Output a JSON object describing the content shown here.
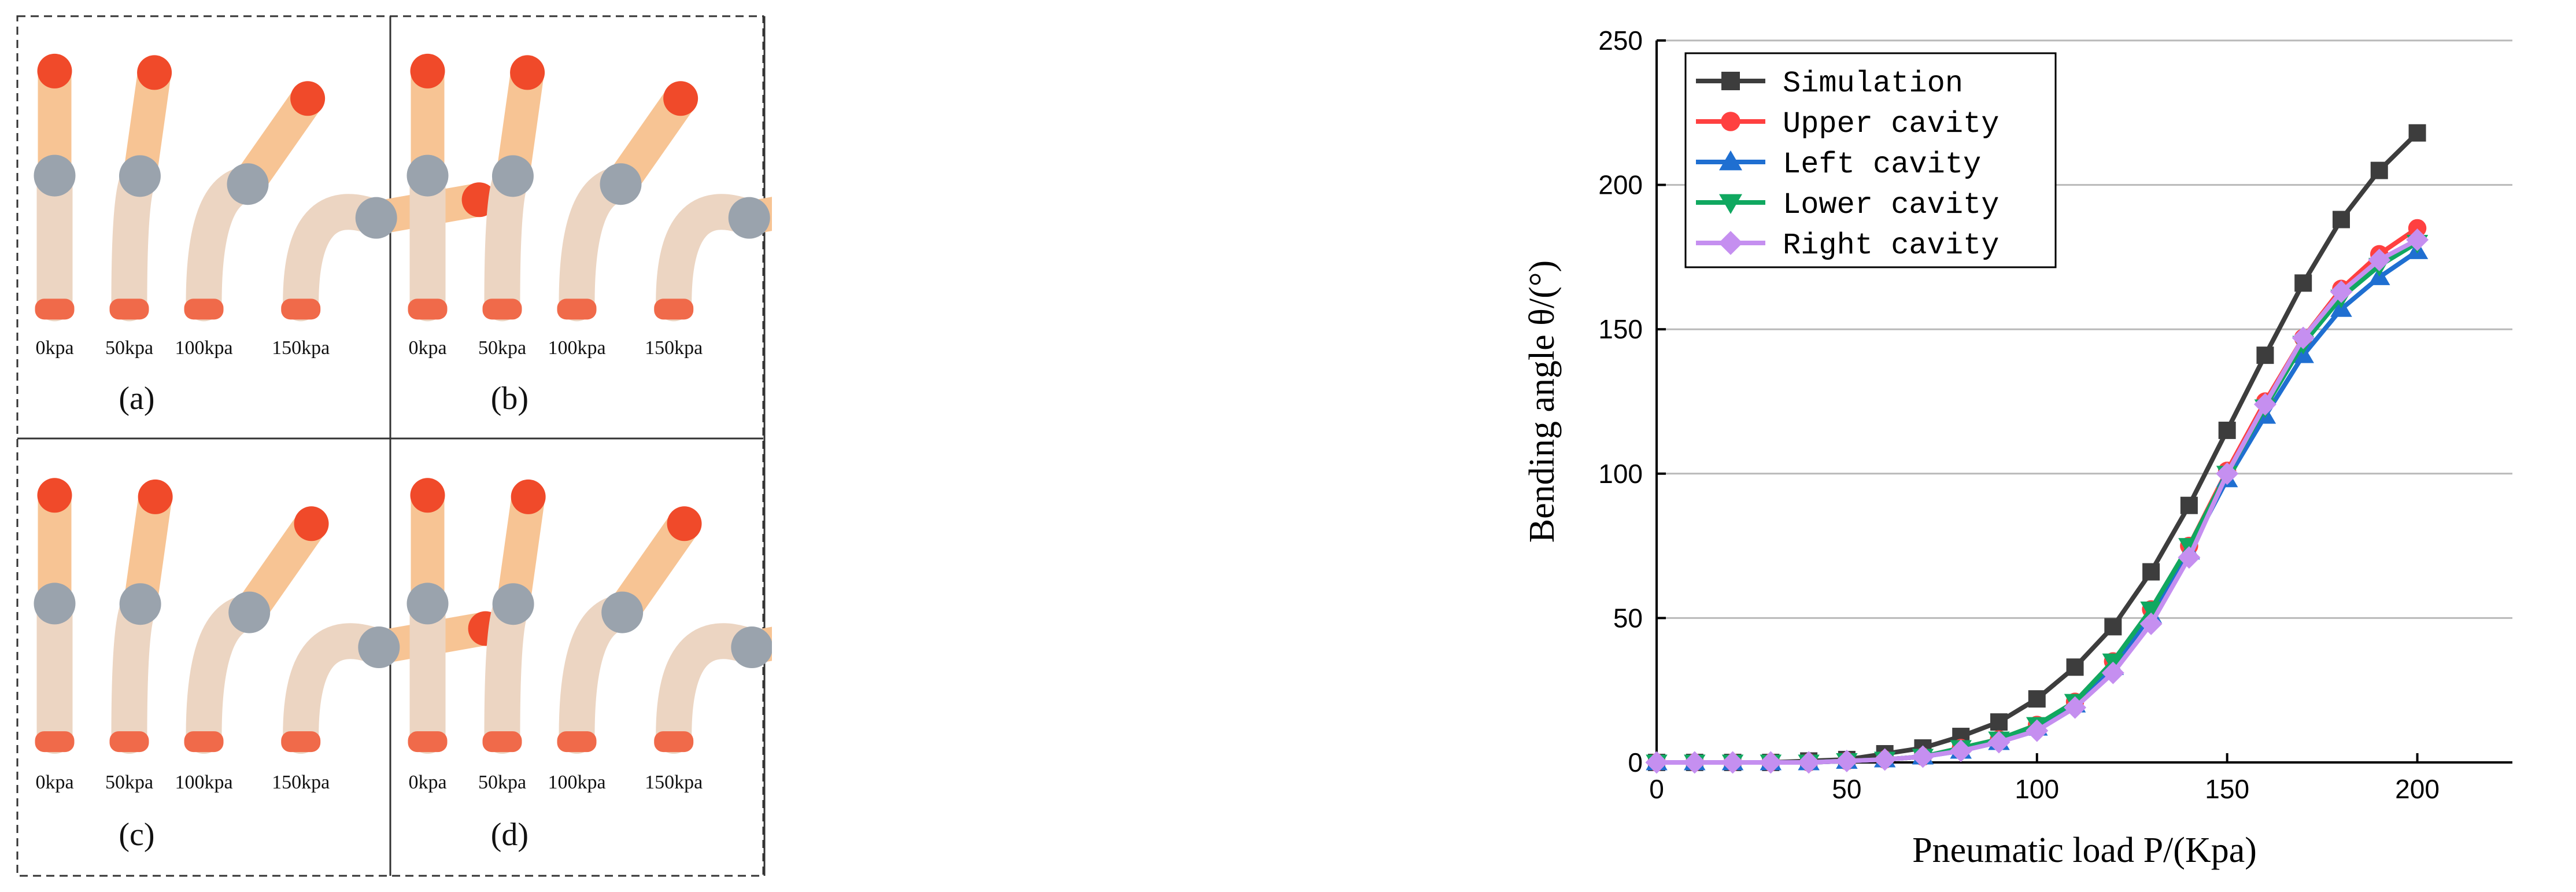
{
  "figure": {
    "panels": [
      {
        "label": "(a)",
        "pressures": [
          "0kpa",
          "50kpa",
          "100kpa",
          "150kpa"
        ],
        "tip_color": "#f04a2a"
      },
      {
        "label": "(b)",
        "pressures": [
          "0kpa",
          "50kpa",
          "100kpa",
          "150kpa"
        ],
        "tip_color": "#f04a2a"
      },
      {
        "label": "(c)",
        "pressures": [
          "0kpa",
          "50kpa",
          "100kpa",
          "150kpa"
        ],
        "tip_color": "#f04a2a"
      },
      {
        "label": "(d)",
        "pressures": [
          "0kpa",
          "50kpa",
          "100kpa",
          "150kpa"
        ],
        "tip_color": "#f04a2a"
      }
    ],
    "finger_colors": {
      "segment": "#f7c494",
      "connector": "#9aa3ad",
      "sleeve": "#ecd5c2",
      "base": "#f06a4a"
    }
  },
  "chart_data": {
    "type": "line",
    "title": "",
    "xlabel": "Pneumatic load P/(Kpa)",
    "ylabel": "Bending angle θ/(°)",
    "xlim": [
      0,
      225
    ],
    "ylim": [
      0,
      250
    ],
    "xticks": [
      0,
      50,
      100,
      150,
      200
    ],
    "yticks": [
      0,
      50,
      100,
      150,
      200,
      250
    ],
    "grid": "horizontal",
    "legend_position": "top-left",
    "x": [
      0,
      10,
      20,
      30,
      40,
      50,
      60,
      70,
      80,
      90,
      100,
      110,
      120,
      130,
      140,
      150,
      160,
      170,
      180,
      190,
      200
    ],
    "series": [
      {
        "name": "Simulation",
        "color": "#3d3d3d",
        "marker": "square",
        "values": [
          0,
          0,
          0,
          0,
          0.5,
          1,
          3,
          5,
          9,
          14,
          22,
          33,
          47,
          66,
          89,
          115,
          141,
          166,
          188,
          205,
          218
        ]
      },
      {
        "name": "Upper cavity",
        "color": "#ff4040",
        "marker": "circle",
        "values": [
          0,
          0,
          0,
          0,
          0,
          0.5,
          1,
          2,
          5,
          8,
          13,
          21,
          35,
          53,
          75,
          101,
          125,
          147,
          164,
          176,
          185
        ]
      },
      {
        "name": "Left cavity",
        "color": "#1f6fd1",
        "marker": "triangle-up",
        "values": [
          0,
          0,
          0,
          0,
          0,
          0.5,
          1,
          2,
          4,
          7,
          12,
          20,
          33,
          51,
          73,
          98,
          120,
          141,
          157,
          168,
          177
        ]
      },
      {
        "name": "Lower cavity",
        "color": "#10a860",
        "marker": "triangle-down",
        "values": [
          0,
          0,
          0,
          0,
          0,
          0.5,
          1,
          2,
          5,
          8,
          13,
          21,
          35,
          53,
          75,
          100,
          123,
          145,
          161,
          172,
          180
        ]
      },
      {
        "name": "Right cavity",
        "color": "#c58ff0",
        "marker": "diamond",
        "values": [
          0,
          0,
          0,
          0,
          0,
          0.5,
          1,
          2,
          4,
          7,
          11,
          19,
          31,
          48,
          71,
          100,
          124,
          147,
          163,
          174,
          181
        ]
      }
    ]
  }
}
